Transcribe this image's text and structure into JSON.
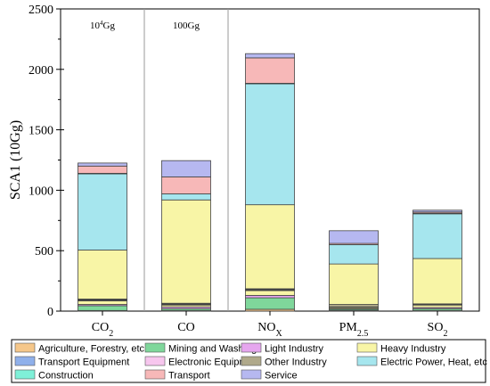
{
  "chart_data": {
    "type": "bar",
    "stacked": true,
    "categories": [
      "CO2",
      "CO",
      "NOX",
      "PM2.5",
      "SO2"
    ],
    "category_labels": [
      {
        "base": "CO",
        "sub": "2"
      },
      {
        "base": "CO",
        "sub": ""
      },
      {
        "base": "NO",
        "sub": "X"
      },
      {
        "base": "PM",
        "sub": "2.5"
      },
      {
        "base": "SO",
        "sub": "2"
      }
    ],
    "ylabel": "SCA1 (10Gg)",
    "ylim": [
      0,
      2500
    ],
    "yticks": [
      0,
      500,
      1000,
      1500,
      2000,
      2500
    ],
    "ytick_labels": [
      "0",
      "500",
      "1000",
      "1500",
      "2000",
      "2500"
    ],
    "grid": false,
    "legend_position": "bottom",
    "annotations": [
      {
        "base": "10",
        "sup": "4",
        "rest": "Gg",
        "category": "CO2"
      },
      {
        "base": "100Gg",
        "sup": "",
        "rest": "",
        "category": "CO"
      }
    ],
    "series": [
      {
        "name": "Agriculture, Forestry, etc",
        "color": "#f5c78a",
        "values": [
          5,
          5,
          15,
          5,
          5
        ]
      },
      {
        "name": "Mining and Washing",
        "color": "#7fd79b",
        "values": [
          40,
          15,
          95,
          10,
          15
        ]
      },
      {
        "name": "Light Industry",
        "color": "#e6a6ee",
        "values": [
          10,
          15,
          20,
          5,
          10
        ]
      },
      {
        "name": "Heavy Industry",
        "color": "#f8f5a6",
        "values": [
          30,
          15,
          40,
          10,
          20
        ]
      },
      {
        "name": "Transport Equipment",
        "color": "#8fb0ea",
        "values": [
          5,
          5,
          5,
          2,
          3
        ]
      },
      {
        "name": "Electronic Equipment",
        "color": "#f7c6ee",
        "values": [
          5,
          5,
          5,
          3,
          2
        ]
      },
      {
        "name": "Other Industry",
        "color": "#b0a98a",
        "values": [
          5,
          5,
          5,
          20,
          5
        ]
      },
      {
        "name": "Heavy Industry",
        "color": "#f8f5a6",
        "values": [
          405,
          855,
          695,
          335,
          375
        ]
      },
      {
        "name": "Electric Power, Heat, etc",
        "color": "#a6e6ee",
        "values": [
          630,
          50,
          1000,
          160,
          370
        ]
      },
      {
        "name": "Construction",
        "color": "#7ff0d8",
        "values": [
          5,
          0,
          5,
          0,
          5
        ]
      },
      {
        "name": "Transport",
        "color": "#f7b8b8",
        "values": [
          60,
          140,
          210,
          10,
          10
        ]
      },
      {
        "name": "Service",
        "color": "#b6b8f0",
        "values": [
          25,
          135,
          35,
          105,
          15
        ]
      }
    ],
    "legend": [
      {
        "name": "Agriculture, Forestry, etc",
        "color": "#f5c78a"
      },
      {
        "name": "Mining and Washing",
        "color": "#7fd79b"
      },
      {
        "name": "Light Industry",
        "color": "#e6a6ee"
      },
      {
        "name": "Heavy Industry",
        "color": "#f8f5a6"
      },
      {
        "name": "Transport Equipment",
        "color": "#8fb0ea"
      },
      {
        "name": "Electronic Equipment",
        "color": "#f7c6ee"
      },
      {
        "name": "Other Industry",
        "color": "#b0a98a"
      },
      {
        "name": "Electric Power, Heat, etc",
        "color": "#a6e6ee"
      },
      {
        "name": "Construction",
        "color": "#7ff0d8"
      },
      {
        "name": "Transport",
        "color": "#f7b8b8"
      },
      {
        "name": "Service",
        "color": "#b6b8f0"
      }
    ]
  }
}
